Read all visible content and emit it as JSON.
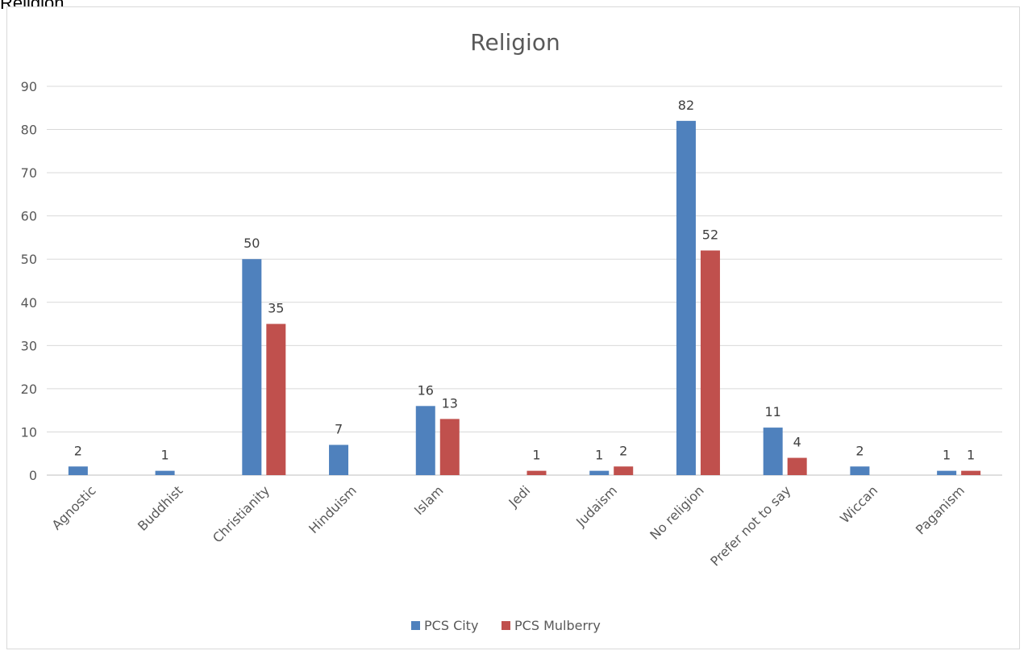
{
  "page_heading": "Religion",
  "chart_data": {
    "type": "bar",
    "title": "Religion",
    "xlabel": "",
    "ylabel": "",
    "ylim": [
      0,
      90
    ],
    "y_ticks": [
      0,
      10,
      20,
      30,
      40,
      50,
      60,
      70,
      80,
      90
    ],
    "grid": true,
    "legend_position": "bottom",
    "categories": [
      "Agnostic",
      "Buddhist",
      "Christianity",
      "Hinduism",
      "Islam",
      "Jedi",
      "Judaism",
      "No religion",
      "Prefer not to say",
      "Wiccan",
      "Paganism"
    ],
    "series": [
      {
        "name": "PCS City",
        "color": "#4f81bd",
        "values": [
          2,
          1,
          50,
          7,
          16,
          null,
          1,
          82,
          11,
          2,
          1
        ]
      },
      {
        "name": "PCS Mulberry",
        "color": "#c0504d",
        "values": [
          null,
          null,
          35,
          null,
          13,
          1,
          2,
          52,
          4,
          null,
          1
        ]
      }
    ]
  }
}
